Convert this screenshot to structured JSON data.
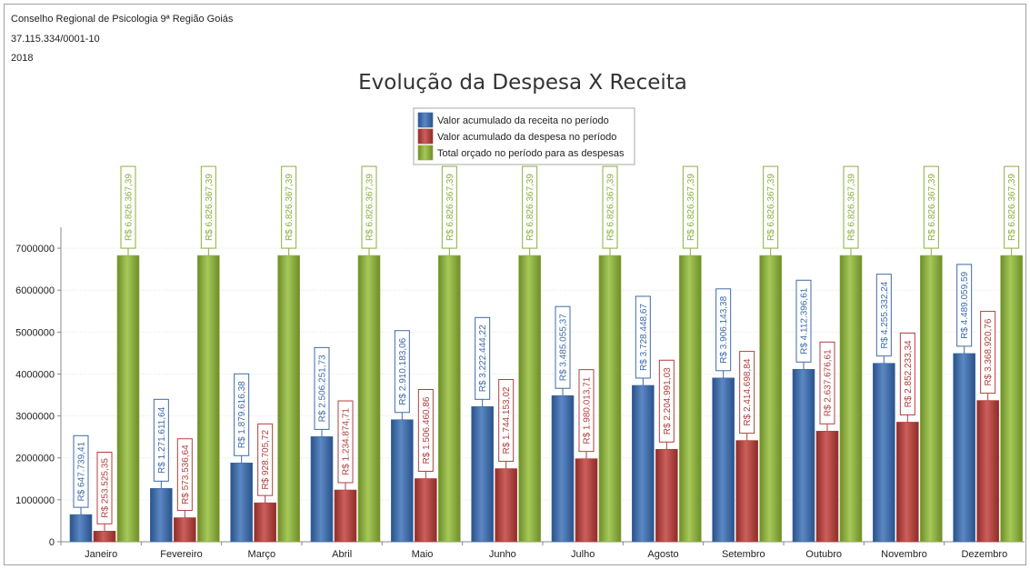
{
  "header": {
    "organization": "Conselho Regional de Psicologia 9ª Região Goiás",
    "cnpj": "37.115.334/0001-10",
    "year": "2018"
  },
  "colors": {
    "receita": "#3d6ba9",
    "despesa": "#b0403c",
    "orcado": "#8bae3f"
  },
  "chart_data": {
    "type": "bar",
    "title": "Evolução da Despesa X Receita",
    "xlabel": "",
    "ylabel": "",
    "ylim": [
      0,
      7500000
    ],
    "yticks": [
      0,
      1000000,
      2000000,
      3000000,
      4000000,
      5000000,
      6000000,
      7000000
    ],
    "ytick_labels": [
      "0",
      "1000000",
      "2000000",
      "3000000",
      "4000000",
      "5000000",
      "6000000",
      "7000000"
    ],
    "grid": true,
    "legend_position": "top-center",
    "categories": [
      "Janeiro",
      "Fevereiro",
      "Março",
      "Abril",
      "Maio",
      "Junho",
      "Julho",
      "Agosto",
      "Setembro",
      "Outubro",
      "Novembro",
      "Dezembro"
    ],
    "series": [
      {
        "name": "Valor acumulado da receita no período",
        "values": [
          647739.41,
          1271611.64,
          1879616.38,
          2506251.73,
          2910183.06,
          3222444.22,
          3485055.37,
          3728448.67,
          3906143.38,
          4112396.61,
          4255332.24,
          4489059.59
        ],
        "labels": [
          "R$ 647.739,41",
          "R$ 1.271.611,64",
          "R$ 1.879.616,38",
          "R$ 2.506.251,73",
          "R$ 2.910.183,06",
          "R$ 3.222.444,22",
          "R$ 3.485.055,37",
          "R$ 3.728.448,67",
          "R$ 3.906.143,38",
          "R$ 4.112.396,61",
          "R$ 4.255.332,24",
          "R$ 4.489.059,59"
        ]
      },
      {
        "name": "Valor acumulado da despesa no período",
        "values": [
          253525.35,
          573536.64,
          928705.72,
          1234874.71,
          1506460.86,
          1744153.02,
          1980013.71,
          2204991.03,
          2414698.84,
          2637676.61,
          2852233.34,
          3368920.76
        ],
        "labels": [
          "R$ 253.525,35",
          "R$ 573.536,64",
          "R$ 928.705,72",
          "R$ 1.234.874,71",
          "R$ 1.506.460,86",
          "R$ 1.744.153,02",
          "R$ 1.980.013,71",
          "R$ 2.204.991,03",
          "R$ 2.414.698,84",
          "R$ 2.637.676,61",
          "R$ 2.852.233,34",
          "R$ 3.368.920,76"
        ]
      },
      {
        "name": "Total orçado no período para as despesas",
        "values": [
          6826367.39,
          6826367.39,
          6826367.39,
          6826367.39,
          6826367.39,
          6826367.39,
          6826367.39,
          6826367.39,
          6826367.39,
          6826367.39,
          6826367.39,
          6826367.39
        ],
        "labels": [
          "R$ 6.826.367,39",
          "R$ 6.826.367,39",
          "R$ 6.826.367,39",
          "R$ 6.826.367,39",
          "R$ 6.826.367,39",
          "R$ 6.826.367,39",
          "R$ 6.826.367,39",
          "R$ 6.826.367,39",
          "R$ 6.826.367,39",
          "R$ 6.826.367,39",
          "R$ 6.826.367,39",
          "R$ 6.826.367,39"
        ]
      }
    ]
  }
}
